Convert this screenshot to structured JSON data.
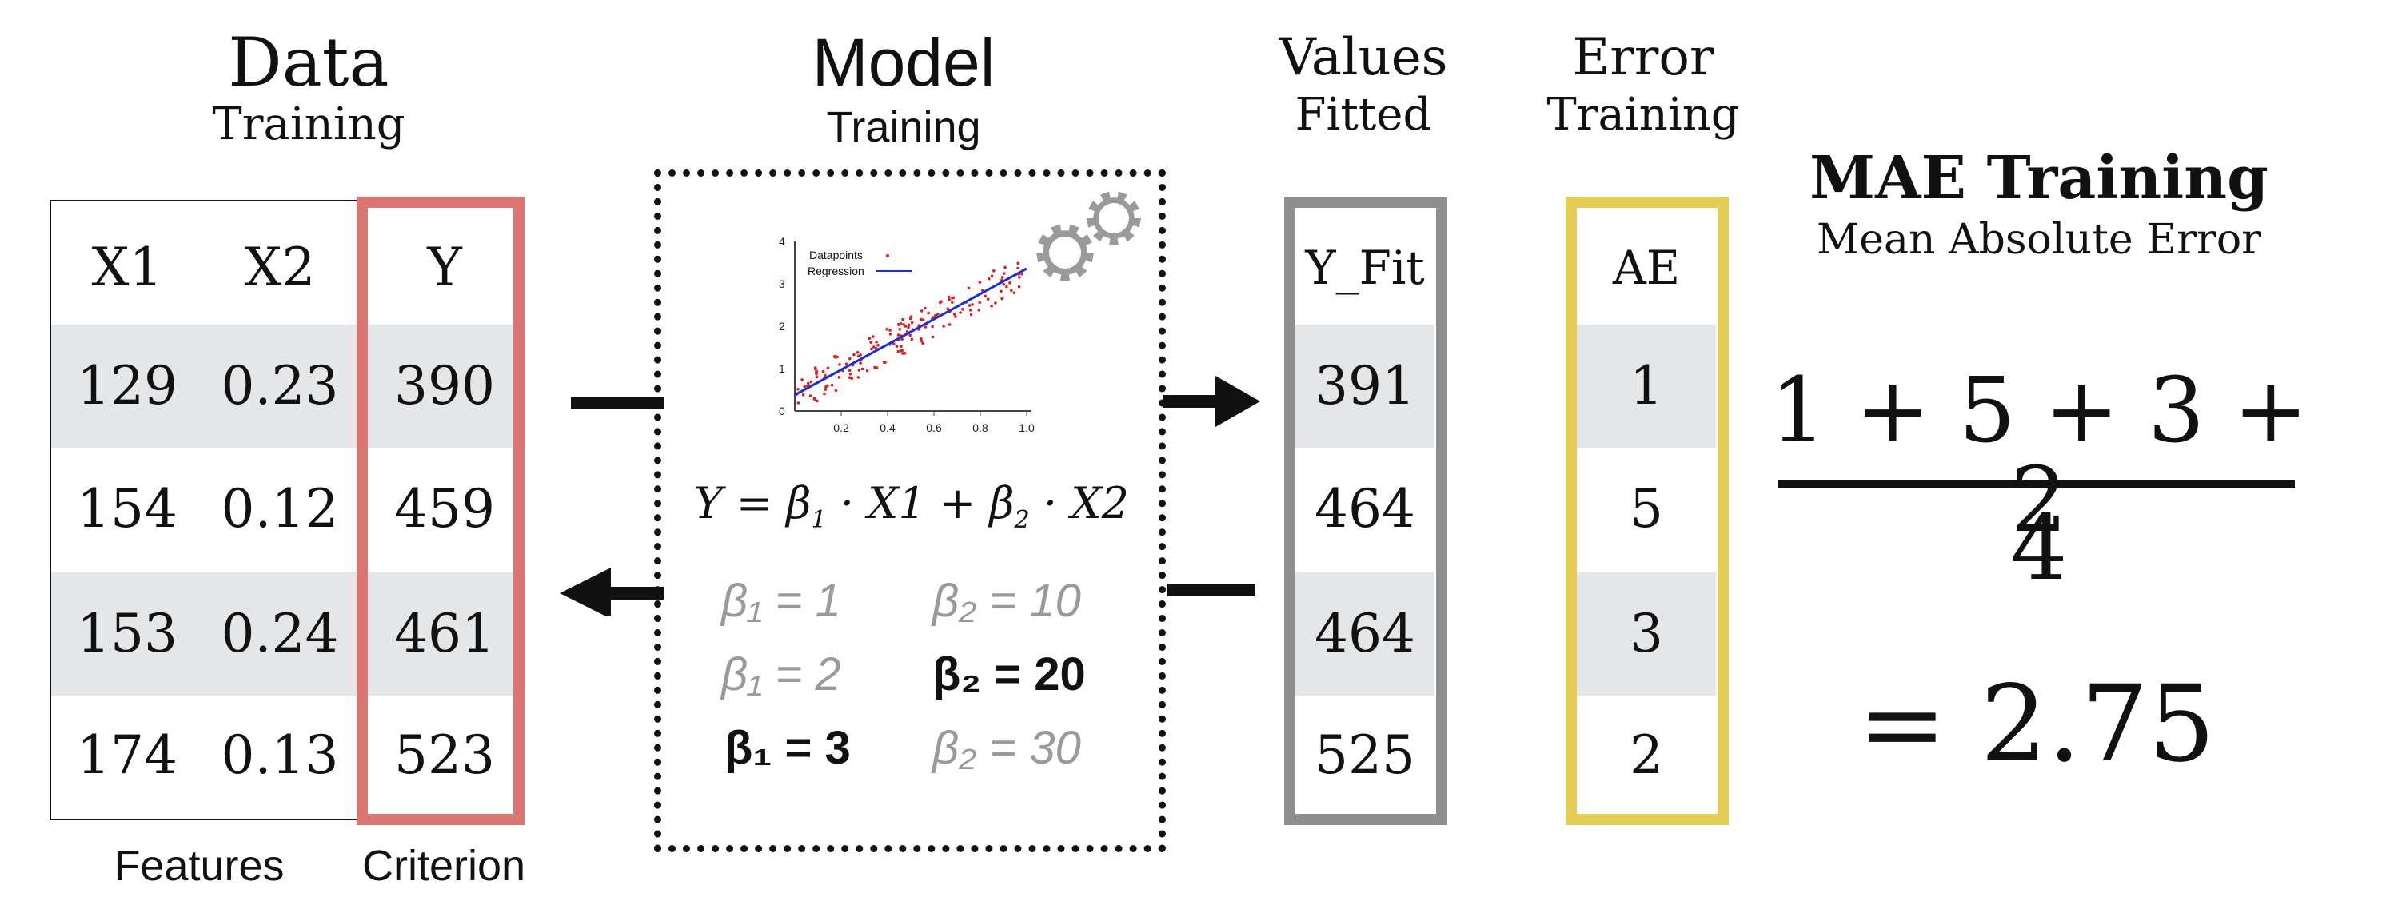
{
  "data_section": {
    "title": "Data",
    "subtitle": "Training",
    "columns": [
      "X1",
      "X2",
      "Y"
    ],
    "rows": [
      [
        "129",
        "0.23",
        "390"
      ],
      [
        "154",
        "0.12",
        "459"
      ],
      [
        "153",
        "0.24",
        "461"
      ],
      [
        "174",
        "0.13",
        "523"
      ]
    ],
    "features_label": "Features",
    "criterion_label": "Criterion"
  },
  "model_section": {
    "title": "Model",
    "subtitle": "Training",
    "equation": "Y = β1 · X1 + β2 · X2",
    "plot_legend": [
      "Datapoints",
      "Regression"
    ],
    "plot_yticks": [
      "4",
      "3",
      "2",
      "1",
      "0"
    ],
    "plot_xticks": [
      "0.2",
      "0.4",
      "0.6",
      "0.8",
      "1.0"
    ],
    "betas": [
      {
        "left": "β₁ = 1",
        "right": "β₂ = 10"
      },
      {
        "left": "β₁ = 2",
        "right": "β₂ = 20"
      },
      {
        "left": "β₁ = 3",
        "right": "β₂ = 30"
      }
    ]
  },
  "fitted_section": {
    "title": "Values",
    "subtitle": "Fitted",
    "header": "Y_Fit",
    "values": [
      "391",
      "464",
      "464",
      "525"
    ]
  },
  "error_section": {
    "title": "Error",
    "subtitle": "Training",
    "header": "AE",
    "values": [
      "1",
      "5",
      "3",
      "2"
    ]
  },
  "mae_section": {
    "title": "MAE Training",
    "subtitle": "Mean Absolute Error",
    "numerator": "1 + 5 + 3 + 2",
    "denominator": "4",
    "result": "= 2.75"
  },
  "colors": {
    "criterion_border": "#dc7672",
    "fitted_border": "#8e8e8e",
    "error_border": "#e3cd56",
    "stripe": "#e5e6e8"
  }
}
